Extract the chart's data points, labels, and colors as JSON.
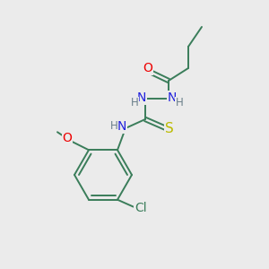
{
  "background_color": "#ebebeb",
  "bond_color": "#3a7d5a",
  "atom_colors": {
    "O": "#ee0000",
    "N": "#2020dd",
    "S": "#bbbb00",
    "Cl": "#3a7d5a",
    "C": "#3a7d5a",
    "H": "#6a7f8a"
  },
  "font_size": 10,
  "small_font_size": 8.5,
  "lw": 1.4
}
